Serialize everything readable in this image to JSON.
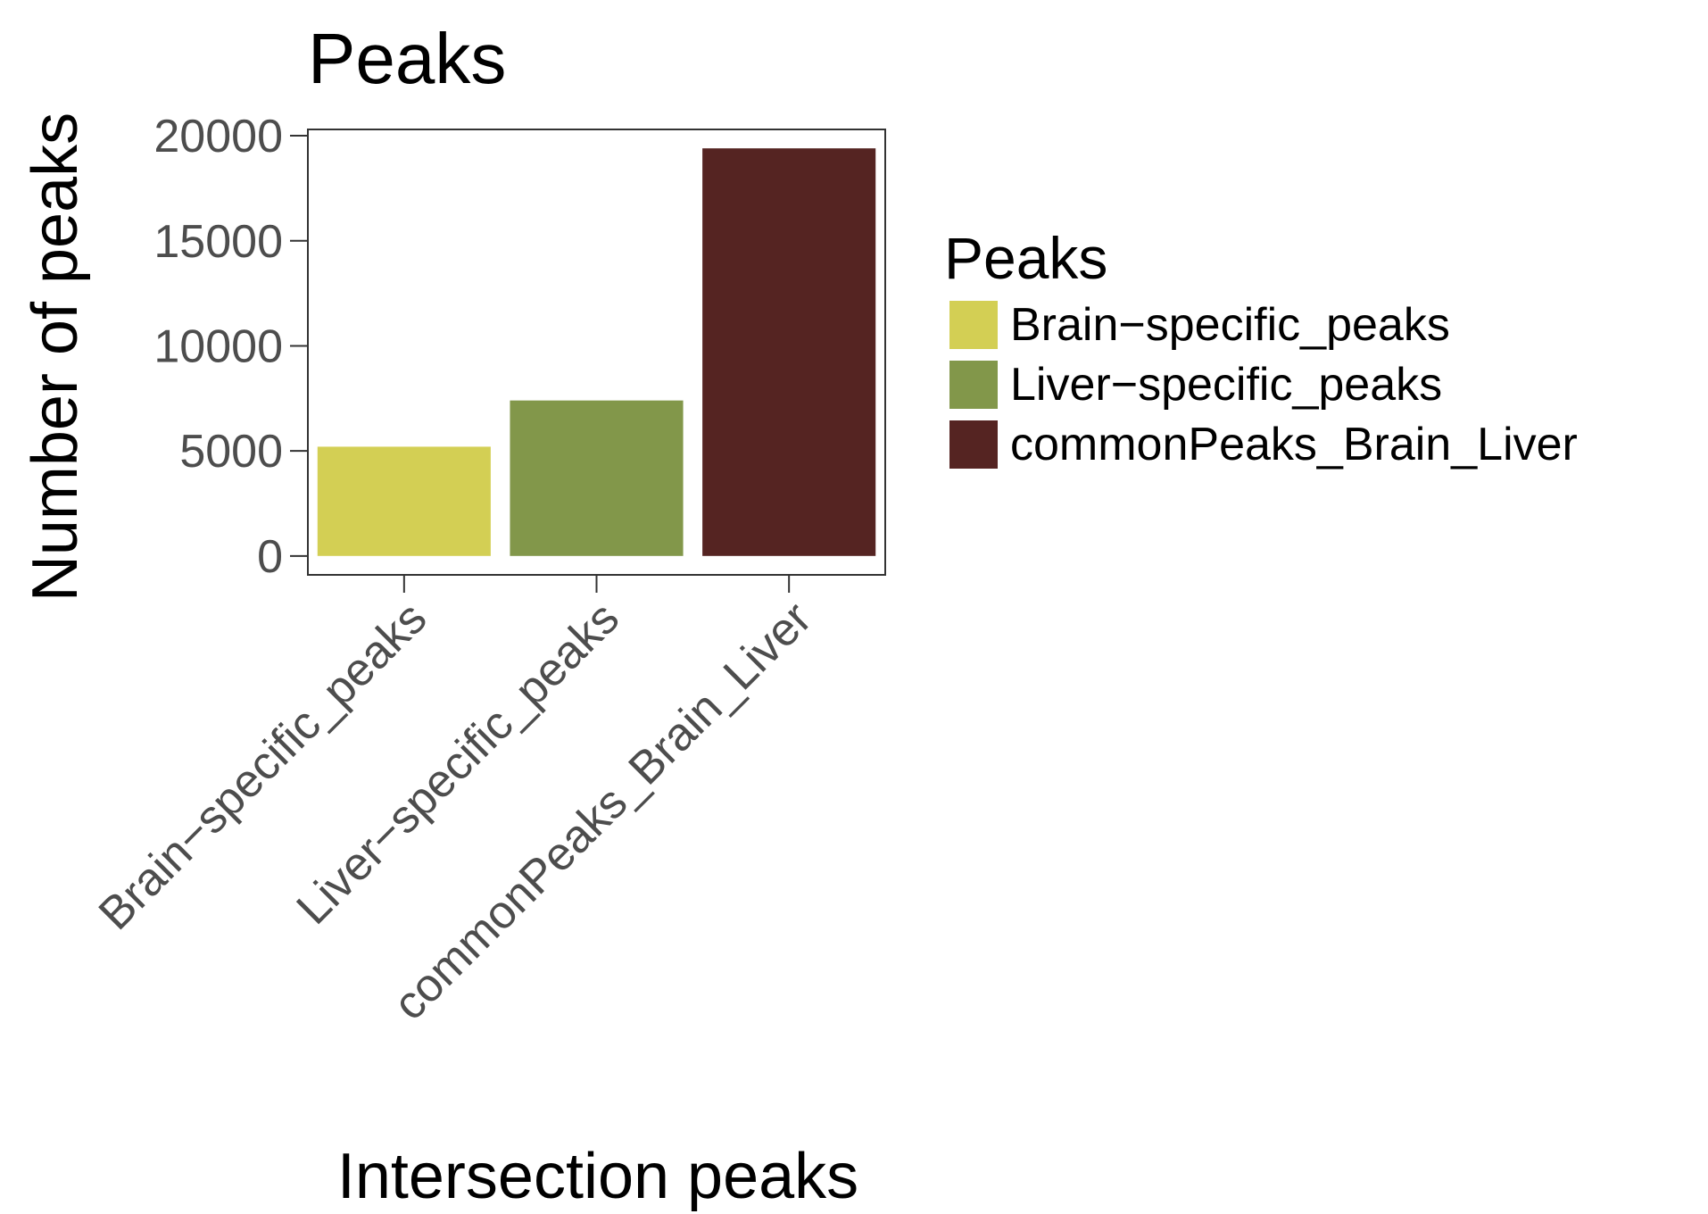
{
  "chart_data": {
    "type": "bar",
    "title": "Peaks",
    "xlabel": "Intersection peaks",
    "ylabel": "Number of peaks",
    "categories": [
      "Brain−specific_peaks",
      "Liver−specific_peaks",
      "commonPeaks_Brain_Liver"
    ],
    "values": [
      5200,
      7400,
      19400
    ],
    "colors": [
      "#d3cf54",
      "#82974a",
      "#552422"
    ],
    "ylim": [
      -900,
      20300
    ],
    "yticks": [
      0,
      5000,
      10000,
      15000,
      20000
    ],
    "ytick_labels": [
      "0",
      "5000",
      "10000",
      "15000",
      "20000"
    ],
    "grid": false,
    "legend": {
      "title": "Peaks",
      "placement": "right",
      "entries": [
        "Brain−specific_peaks",
        "Liver−specific_peaks",
        "commonPeaks_Brain_Liver"
      ]
    }
  }
}
